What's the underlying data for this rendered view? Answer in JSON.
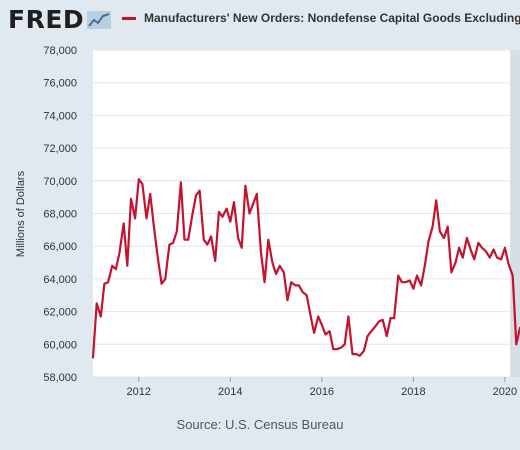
{
  "header": {
    "logo_text": "FRED",
    "legend_label": "Manufacturers' New Orders: Nondefense Capital Goods Excluding"
  },
  "colors": {
    "series": "#c4122f",
    "background": "#e1e9f0",
    "plot_background": "#ffffff",
    "gridline": "#e6e6e6"
  },
  "source_text": "Source: U.S. Census Bureau",
  "chart_data": {
    "type": "line",
    "ylabel": "Millions of Dollars",
    "xlabel": "",
    "ylim": [
      58000,
      78000
    ],
    "yticks": [
      58000,
      60000,
      62000,
      64000,
      66000,
      68000,
      70000,
      72000,
      74000,
      76000,
      78000
    ],
    "ytick_labels": [
      "58,000",
      "60,000",
      "62,000",
      "64,000",
      "66,000",
      "68,000",
      "70,000",
      "72,000",
      "74,000",
      "76,000",
      "78,000"
    ],
    "xlim": [
      2011.0,
      2020.33
    ],
    "xticks": [
      2012,
      2014,
      2016,
      2018,
      2020
    ],
    "xtick_labels": [
      "2012",
      "2014",
      "2016",
      "2018",
      "2020"
    ],
    "grid": true,
    "series": [
      {
        "x": [
          2011.0,
          2011.08,
          2011.17,
          2011.25,
          2011.33,
          2011.42,
          2011.5,
          2011.58,
          2011.67,
          2011.75,
          2011.83,
          2011.92,
          2012.0,
          2012.08,
          2012.17,
          2012.25,
          2012.33,
          2012.42,
          2012.5,
          2012.58,
          2012.67,
          2012.75,
          2012.83,
          2012.92,
          2013.0,
          2013.08,
          2013.17,
          2013.25,
          2013.33,
          2013.42,
          2013.5,
          2013.58,
          2013.67,
          2013.75,
          2013.83,
          2013.92,
          2014.0,
          2014.08,
          2014.17,
          2014.25,
          2014.33,
          2014.42,
          2014.5,
          2014.58,
          2014.67,
          2014.75,
          2014.83,
          2014.92,
          2015.0,
          2015.08,
          2015.17,
          2015.25,
          2015.33,
          2015.42,
          2015.5,
          2015.58,
          2015.67,
          2015.75,
          2015.83,
          2015.92,
          2016.0,
          2016.08,
          2016.17,
          2016.25,
          2016.33,
          2016.42,
          2016.5,
          2016.58,
          2016.67,
          2016.75,
          2016.83,
          2016.92,
          2017.0,
          2017.08,
          2017.17,
          2017.25,
          2017.33,
          2017.42,
          2017.5,
          2017.58,
          2017.67,
          2017.75,
          2017.83,
          2017.92,
          2018.0,
          2018.08,
          2018.17,
          2018.25,
          2018.33,
          2018.42,
          2018.5,
          2018.58,
          2018.67,
          2018.75,
          2018.83,
          2018.92,
          2019.0,
          2019.08,
          2019.17,
          2019.25,
          2019.33,
          2019.42,
          2019.5,
          2019.58,
          2019.67,
          2019.75,
          2019.83,
          2019.92,
          2020.0,
          2020.08,
          2020.17,
          2020.25,
          2020.33
        ],
        "values": [
          59200,
          62500,
          61700,
          63700,
          63800,
          64800,
          64600,
          65600,
          67400,
          64800,
          68900,
          67700,
          70100,
          69800,
          67700,
          69200,
          67200,
          65200,
          63700,
          64000,
          66100,
          66200,
          66900,
          69900,
          66400,
          66400,
          67900,
          69100,
          69400,
          66400,
          66100,
          66600,
          65100,
          68100,
          67800,
          68300,
          67500,
          68700,
          66500,
          65900,
          69700,
          68000,
          68600,
          69200,
          65600,
          63800,
          66400,
          65000,
          64300,
          64800,
          64400,
          62700,
          63800,
          63600,
          63600,
          63200,
          63000,
          61800,
          60700,
          61700,
          61200,
          60600,
          60800,
          59700,
          59700,
          59800,
          60000,
          61700,
          59400,
          59400,
          59300,
          59600,
          60500,
          60800,
          61100,
          61400,
          61500,
          60500,
          61600,
          61600,
          64200,
          63800,
          63800,
          63900,
          63400,
          64200,
          63600,
          64800,
          66300,
          67200,
          68800,
          66900,
          66500,
          67200,
          64400,
          65000,
          65900,
          65300,
          66500,
          65800,
          65200,
          66200,
          65900,
          65700,
          65300,
          65800,
          65300,
          65200,
          65900,
          64900,
          64200,
          60000,
          61000
        ]
      }
    ]
  }
}
